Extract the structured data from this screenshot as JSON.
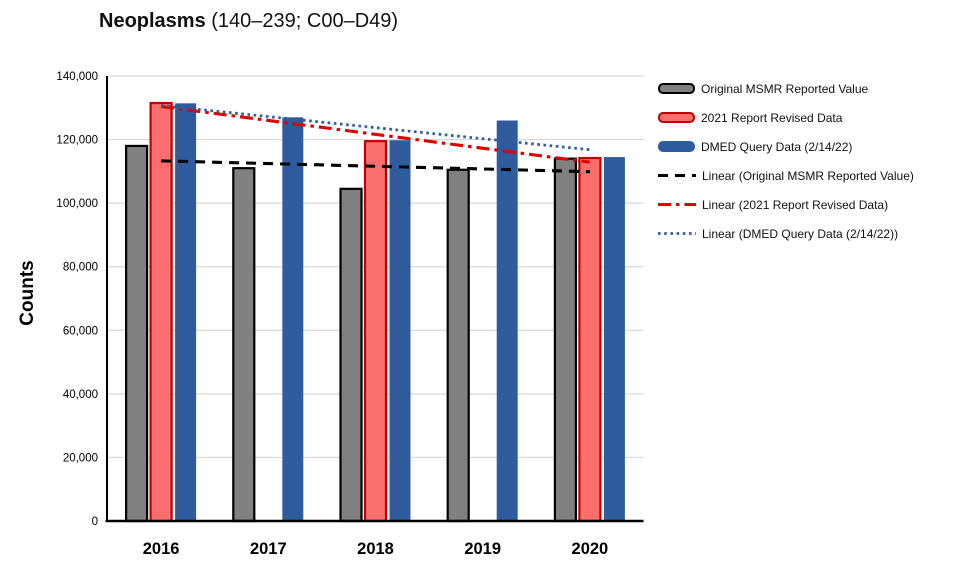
{
  "title": {
    "main": "Neoplasms",
    "sub": " (140–239; C00–D49)"
  },
  "chart_data": {
    "type": "bar",
    "title": "Neoplasms (140–239; C00–D49)",
    "xlabel": "",
    "ylabel": "Counts",
    "ylim": [
      0,
      140000
    ],
    "ytick_step": 20000,
    "ytick_labels": [
      "0",
      "20,000",
      "40,000",
      "60,000",
      "80,000",
      "100,000",
      "120,000",
      "140,000"
    ],
    "grid": true,
    "legend_position": "right",
    "categories": [
      "2016",
      "2017",
      "2018",
      "2019",
      "2020"
    ],
    "series": [
      {
        "name": "Original MSMR Reported Value",
        "fill": "#808080",
        "stroke": "#000000",
        "values": [
          118000,
          111000,
          104500,
          110500,
          114000
        ]
      },
      {
        "name": "2021 Report Revised Data",
        "fill": "#FA6E6E",
        "stroke": "#C00000",
        "values": [
          131500,
          null,
          119500,
          null,
          114200
        ]
      },
      {
        "name": "DMED Query Data (2/14/22)",
        "fill": "#2F5C9F",
        "stroke": null,
        "values": [
          131400,
          127000,
          119800,
          126000,
          114500
        ]
      }
    ],
    "trendlines": [
      {
        "name": "Linear (Original MSMR Reported Value)",
        "color": "#000000",
        "style": "dashed",
        "start_value": 113300,
        "end_value": 109900
      },
      {
        "name": "Linear (2021 Report Revised Data)",
        "color": "#E00000",
        "style": "dashdot",
        "start_value": 130400,
        "end_value": 112900
      },
      {
        "name": "Linear (DMED Query Data (2/14/22))",
        "color": "#2F5C9F",
        "style": "dotted",
        "start_value": 130700,
        "end_value": 116800
      }
    ]
  },
  "legend": {
    "entries": [
      {
        "label": "Original MSMR Reported Value",
        "swatch": "bar",
        "fill": "#808080",
        "stroke": "#000000"
      },
      {
        "label": "2021 Report Revised Data",
        "swatch": "bar",
        "fill": "#FA6E6E",
        "stroke": "#C00000"
      },
      {
        "label": "DMED Query Data (2/14/22)",
        "swatch": "bar",
        "fill": "#2F5C9F",
        "stroke": "#2F5C9F"
      },
      {
        "label": "Linear (Original MSMR Reported Value)",
        "swatch": "line-dashed",
        "color": "#000000"
      },
      {
        "label": "Linear (2021 Report Revised Data)",
        "swatch": "line-dashdot",
        "color": "#E00000"
      },
      {
        "label": "Linear (DMED Query Data (2/14/22))",
        "swatch": "line-dotted",
        "color": "#2F5C9F"
      }
    ]
  },
  "colors": {
    "gridline": "#D9D9D9",
    "axis": "#000000",
    "background": "#FFFFFF"
  }
}
